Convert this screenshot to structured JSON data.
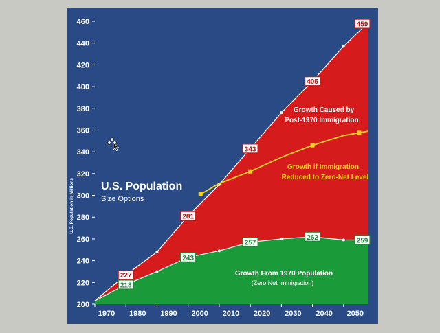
{
  "chart_data": {
    "type": "area",
    "title": "U.S. Population",
    "subtitle": "Size Options",
    "ylabel": "U.S. Population in Millions",
    "ylim": [
      200,
      460
    ],
    "yticks": [
      200,
      220,
      240,
      260,
      280,
      300,
      320,
      340,
      360,
      380,
      400,
      420,
      440,
      460
    ],
    "xticks": [
      1970,
      1980,
      1990,
      2000,
      2010,
      2020,
      2030,
      2040,
      2050
    ],
    "xlim": [
      1970,
      2058
    ],
    "grid": false,
    "series": [
      {
        "key": "total",
        "x": [
          1970,
          1980,
          1990,
          2000,
          2010,
          2020,
          2030,
          2040,
          2050,
          2058
        ],
        "values": [
          203,
          227,
          248,
          281,
          310,
          343,
          376,
          405,
          437,
          459
        ],
        "labels": [
          {
            "x": 1980,
            "y": 227,
            "text": "227"
          },
          {
            "x": 2000,
            "y": 281,
            "text": "281"
          },
          {
            "x": 2020,
            "y": 343,
            "text": "343"
          },
          {
            "x": 2040,
            "y": 405,
            "text": "405"
          },
          {
            "x": 2058,
            "y": 459,
            "text": "459"
          }
        ]
      },
      {
        "key": "zero_net",
        "x": [
          2004,
          2010,
          2020,
          2030,
          2040,
          2050,
          2058
        ],
        "values": [
          301,
          311,
          322,
          335,
          346,
          355,
          359
        ],
        "markers": [
          2004,
          2020,
          2040,
          2055
        ]
      },
      {
        "key": "from_1970",
        "x": [
          1970,
          1980,
          1990,
          2000,
          2010,
          2020,
          2030,
          2040,
          2050,
          2058
        ],
        "values": [
          203,
          218,
          230,
          243,
          249,
          257,
          260,
          262,
          259,
          259
        ],
        "labels": [
          {
            "x": 1980,
            "y": 218,
            "text": "218"
          },
          {
            "x": 2000,
            "y": 243,
            "text": "243"
          },
          {
            "x": 2020,
            "y": 257,
            "text": "257"
          },
          {
            "x": 2040,
            "y": 262,
            "text": "262"
          },
          {
            "x": 2058,
            "y": 259,
            "text": "259"
          }
        ]
      }
    ],
    "annotations": {
      "immigration": [
        "Growth Caused by",
        "Post-1970 Immigration"
      ],
      "zero_net": [
        "Growth if Immigration",
        "Reduced to Zero-Net Level"
      ],
      "from_1970": [
        "Growth From 1970 Population",
        "(Zero Net Immigration)"
      ]
    },
    "colors": {
      "background": "#2a4a86",
      "immigration_area": "#d51b1b",
      "base_area": "#1b9a3a",
      "zero_net_line": "#f2d31a",
      "text": "#ffffff"
    }
  }
}
